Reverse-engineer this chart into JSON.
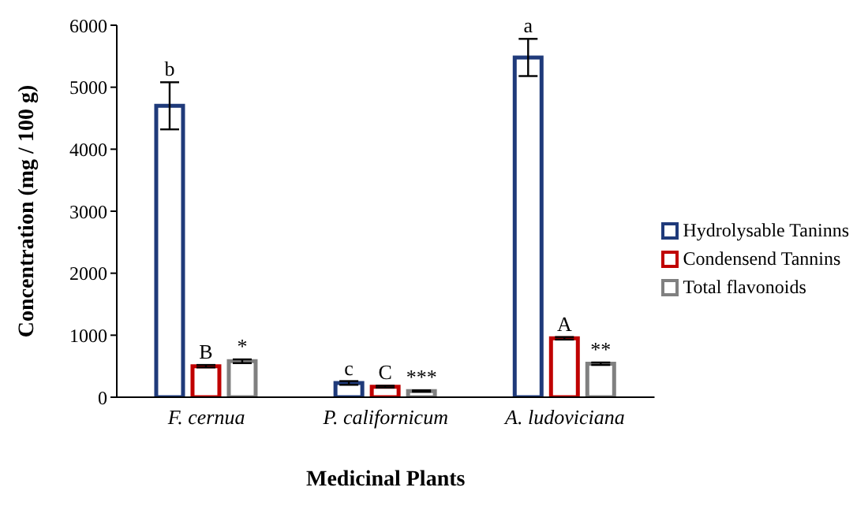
{
  "chart_data": {
    "type": "bar",
    "xlabel": "Medicinal Plants",
    "ylabel": "Concentration (mg / 100 g)",
    "categories": [
      "F. cernua",
      "P. californicum",
      "A. ludoviciana"
    ],
    "series": [
      {
        "name": "Hydrolysable Taninns",
        "color": "#1f3a7a",
        "values": [
          4700,
          230,
          5480
        ],
        "errors": [
          380,
          30,
          300
        ],
        "value_labels": [
          "b",
          "c",
          "a"
        ]
      },
      {
        "name": "Condensend Tannins",
        "color": "#c00000",
        "values": [
          500,
          170,
          950
        ],
        "errors": [
          20,
          15,
          20
        ],
        "value_labels": [
          "B",
          "C",
          "A"
        ]
      },
      {
        "name": "Total flavonoids",
        "color": "#808080",
        "values": [
          580,
          100,
          540
        ],
        "errors": [
          30,
          10,
          20
        ],
        "value_labels": [
          "*",
          "***",
          "**"
        ]
      }
    ],
    "ylim": [
      0,
      6000
    ],
    "yticks": [
      0,
      1000,
      2000,
      3000,
      4000,
      5000,
      6000
    ],
    "grid": false,
    "legend": "right"
  }
}
